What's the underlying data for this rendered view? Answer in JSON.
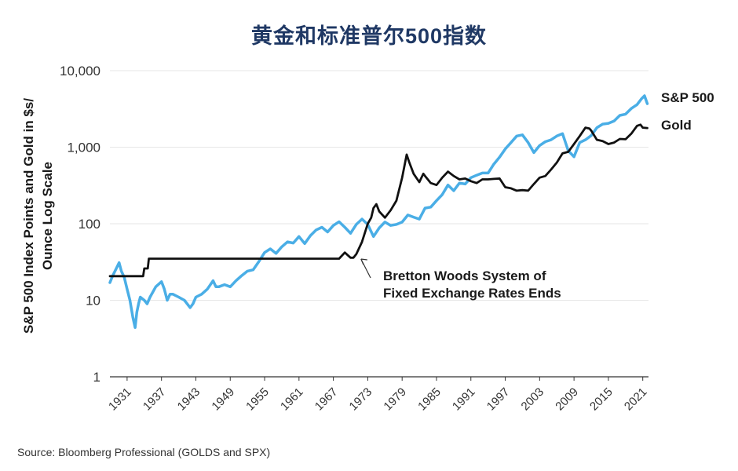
{
  "chart_data": {
    "type": "line",
    "title": "黄金和标准普尔500指数",
    "ylabel_lines": [
      "S&P 500 Index Points and Gold in $s/",
      "Ounce Log Scale"
    ],
    "xlabel": "",
    "y_scale": "log",
    "ylim": [
      1,
      10000
    ],
    "yticks": [
      1,
      10,
      100,
      1000,
      10000
    ],
    "ytick_labels": [
      "1",
      "10",
      "100",
      "1,000",
      "10,000"
    ],
    "xlim": [
      1928,
      2022
    ],
    "xticks": [
      1931,
      1937,
      1943,
      1949,
      1955,
      1961,
      1967,
      1973,
      1979,
      1985,
      1991,
      1997,
      2003,
      2009,
      2015,
      2021
    ],
    "grid": "horizontal",
    "series": [
      {
        "name": "S&P 500",
        "color": "#4aaee6",
        "points": [
          [
            1928,
            17
          ],
          [
            1928.5,
            21
          ],
          [
            1929,
            25
          ],
          [
            1929.6,
            31
          ],
          [
            1930,
            24
          ],
          [
            1930.5,
            20
          ],
          [
            1931,
            14
          ],
          [
            1931.5,
            10
          ],
          [
            1932,
            6
          ],
          [
            1932.4,
            4.4
          ],
          [
            1932.7,
            7
          ],
          [
            1933,
            9
          ],
          [
            1933.3,
            11
          ],
          [
            1934,
            10
          ],
          [
            1934.5,
            9
          ],
          [
            1935,
            11
          ],
          [
            1936,
            15
          ],
          [
            1937,
            17.5
          ],
          [
            1937.5,
            14
          ],
          [
            1938,
            10
          ],
          [
            1938.5,
            12
          ],
          [
            1939,
            12
          ],
          [
            1940,
            11
          ],
          [
            1941,
            10
          ],
          [
            1942,
            8
          ],
          [
            1942.5,
            9
          ],
          [
            1943,
            11
          ],
          [
            1944,
            12
          ],
          [
            1945,
            14
          ],
          [
            1946,
            18
          ],
          [
            1946.5,
            15
          ],
          [
            1947,
            15
          ],
          [
            1948,
            16
          ],
          [
            1949,
            15
          ],
          [
            1950,
            18
          ],
          [
            1951,
            21
          ],
          [
            1952,
            24
          ],
          [
            1953,
            25
          ],
          [
            1954,
            32
          ],
          [
            1955,
            42
          ],
          [
            1956,
            47
          ],
          [
            1957,
            41
          ],
          [
            1958,
            50
          ],
          [
            1959,
            58
          ],
          [
            1960,
            56
          ],
          [
            1961,
            68
          ],
          [
            1962,
            55
          ],
          [
            1963,
            70
          ],
          [
            1964,
            83
          ],
          [
            1965,
            90
          ],
          [
            1966,
            78
          ],
          [
            1967,
            95
          ],
          [
            1968,
            106
          ],
          [
            1969,
            90
          ],
          [
            1970,
            75
          ],
          [
            1971,
            98
          ],
          [
            1972,
            115
          ],
          [
            1973,
            98
          ],
          [
            1974,
            68
          ],
          [
            1975,
            88
          ],
          [
            1976,
            105
          ],
          [
            1977,
            95
          ],
          [
            1978,
            98
          ],
          [
            1979,
            105
          ],
          [
            1980,
            130
          ],
          [
            1981,
            122
          ],
          [
            1982,
            115
          ],
          [
            1983,
            160
          ],
          [
            1984,
            165
          ],
          [
            1985,
            200
          ],
          [
            1986,
            240
          ],
          [
            1987,
            320
          ],
          [
            1988,
            270
          ],
          [
            1989,
            340
          ],
          [
            1990,
            330
          ],
          [
            1991,
            400
          ],
          [
            1992,
            430
          ],
          [
            1993,
            460
          ],
          [
            1994,
            460
          ],
          [
            1995,
            600
          ],
          [
            1996,
            740
          ],
          [
            1997,
            950
          ],
          [
            1998,
            1150
          ],
          [
            1999,
            1400
          ],
          [
            2000,
            1450
          ],
          [
            2001,
            1150
          ],
          [
            2002,
            850
          ],
          [
            2003,
            1050
          ],
          [
            2004,
            1180
          ],
          [
            2005,
            1250
          ],
          [
            2006,
            1400
          ],
          [
            2007,
            1500
          ],
          [
            2008,
            900
          ],
          [
            2009,
            750
          ],
          [
            2010,
            1150
          ],
          [
            2011,
            1250
          ],
          [
            2012,
            1420
          ],
          [
            2013,
            1800
          ],
          [
            2014,
            2000
          ],
          [
            2015,
            2050
          ],
          [
            2016,
            2200
          ],
          [
            2017,
            2600
          ],
          [
            2018,
            2700
          ],
          [
            2019,
            3200
          ],
          [
            2020,
            3600
          ],
          [
            2020.8,
            4300
          ],
          [
            2021.3,
            4700
          ],
          [
            2021.8,
            3700
          ]
        ]
      },
      {
        "name": "Gold",
        "color": "#111111",
        "points": [
          [
            1928,
            20.67
          ],
          [
            1933.8,
            20.67
          ],
          [
            1934,
            26
          ],
          [
            1934.6,
            26
          ],
          [
            1934.8,
            35
          ],
          [
            1968,
            35
          ],
          [
            1969,
            42
          ],
          [
            1970,
            36
          ],
          [
            1970.5,
            36
          ],
          [
            1971,
            40
          ],
          [
            1972,
            58
          ],
          [
            1973,
            100
          ],
          [
            1973.6,
            120
          ],
          [
            1974,
            160
          ],
          [
            1974.5,
            180
          ],
          [
            1975,
            145
          ],
          [
            1976,
            120
          ],
          [
            1977,
            150
          ],
          [
            1978,
            200
          ],
          [
            1979,
            400
          ],
          [
            1979.8,
            800
          ],
          [
            1980.2,
            650
          ],
          [
            1981,
            450
          ],
          [
            1982,
            350
          ],
          [
            1982.7,
            450
          ],
          [
            1983,
            420
          ],
          [
            1984,
            340
          ],
          [
            1985,
            320
          ],
          [
            1986,
            400
          ],
          [
            1987,
            480
          ],
          [
            1988,
            420
          ],
          [
            1989,
            380
          ],
          [
            1990,
            390
          ],
          [
            1991,
            360
          ],
          [
            1992,
            340
          ],
          [
            1993,
            380
          ],
          [
            1994,
            380
          ],
          [
            1995,
            385
          ],
          [
            1996,
            390
          ],
          [
            1997,
            300
          ],
          [
            1998,
            290
          ],
          [
            1999,
            270
          ],
          [
            2000,
            275
          ],
          [
            2001,
            270
          ],
          [
            2002,
            330
          ],
          [
            2003,
            400
          ],
          [
            2004,
            420
          ],
          [
            2005,
            510
          ],
          [
            2006,
            630
          ],
          [
            2007,
            830
          ],
          [
            2008,
            870
          ],
          [
            2009,
            1100
          ],
          [
            2010,
            1400
          ],
          [
            2011,
            1800
          ],
          [
            2011.7,
            1750
          ],
          [
            2012,
            1650
          ],
          [
            2013,
            1250
          ],
          [
            2014,
            1200
          ],
          [
            2015,
            1100
          ],
          [
            2016,
            1150
          ],
          [
            2017,
            1280
          ],
          [
            2018,
            1270
          ],
          [
            2019,
            1500
          ],
          [
            2020,
            1900
          ],
          [
            2020.6,
            1970
          ],
          [
            2021,
            1800
          ],
          [
            2021.8,
            1780
          ]
        ]
      }
    ],
    "annotations": [
      {
        "text_lines": [
          "Bretton Woods System of",
          "Fixed Exchange Rates Ends"
        ],
        "points_to": [
          1971,
          38
        ]
      }
    ]
  },
  "source": "Source: Bloomberg Professional (GOLDS and SPX)"
}
